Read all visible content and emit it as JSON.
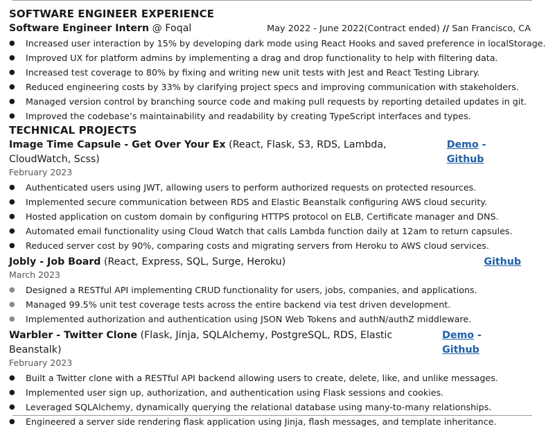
{
  "experience": {
    "heading": "SOFTWARE ENGINEER EXPERIENCE",
    "job": {
      "title": "Software Engineer Intern",
      "at": "@ Foqal",
      "dates": "May 2022 - June 2022(Contract ended)",
      "separator": "//",
      "location": "San Francisco, CA",
      "bullets": [
        "Increased user interaction by 15% by developing dark mode using React Hooks and saved preference in localStorage.",
        "Improved UX for platform admins by implementing a drag and drop functionality to help with filtering data.",
        "Increased test coverage to 80% by fixing and writing new unit tests with Jest and React Testing Library.",
        "Reduced engineering costs by 33% by clarifying project specs and improving communication with stakeholders.",
        "Managed version control by branching source code and making pull requests by reporting detailed updates in git.",
        "Improved the codebase’s maintainability and readability by creating TypeScript interfaces and types."
      ]
    }
  },
  "projects": {
    "heading": "TECHNICAL PROJECTS",
    "items": [
      {
        "name": "Image Time Capsule - Get Over Your Ex",
        "tech": "(React, Flask, S3, RDS, Lambda, CloudWatch, Scss)",
        "demo": "Demo",
        "dash": "-",
        "github": "Github",
        "date": "February 2023",
        "bullets": [
          "Authenticated users using JWT, allowing users to perform authorized requests on protected resources.",
          "Implemented secure communication between RDS and Elastic Beanstalk configuring AWS cloud security.",
          "Hosted application on custom domain by configuring HTTPS protocol on ELB, Certificate manager and DNS.",
          "Automated email functionality using Cloud Watch that calls Lambda function daily at 12am to return capsules.",
          "Reduced server cost by 90%, comparing costs and migrating servers from Heroku to AWS cloud services."
        ]
      },
      {
        "name": "Jobly - Job Board",
        "tech": "(React, Express, SQL, Surge, Heroku)",
        "github": "Github",
        "date": "March 2023",
        "bullets": [
          "Designed a RESTful API implementing CRUD functionality for users, jobs, companies, and applications.",
          "Managed 99.5% unit test coverage tests across the entire backend via test driven development.",
          "Implemented authorization and authentication using JSON Web Tokens and authN/authZ middleware."
        ]
      },
      {
        "name": "Warbler - Twitter Clone",
        "tech": "(Flask, Jinja, SQLAlchemy, PostgreSQL, RDS, Elastic Beanstalk)",
        "demo": "Demo",
        "dash": "-",
        "github": "Github",
        "date": "February 2023",
        "bullets": [
          "Built a Twitter clone with a RESTful API backend allowing users to create, delete, like, and unlike messages.",
          "Implemented user sign up, authorization, and authentication using Flask sessions and cookies.",
          "Leveraged SQLAlchemy, dynamically querying the relational database using  many-to-many relationships.",
          "Engineered a server side rendering flask application using  Jinja, flash messages, and template inheritance."
        ]
      }
    ]
  }
}
